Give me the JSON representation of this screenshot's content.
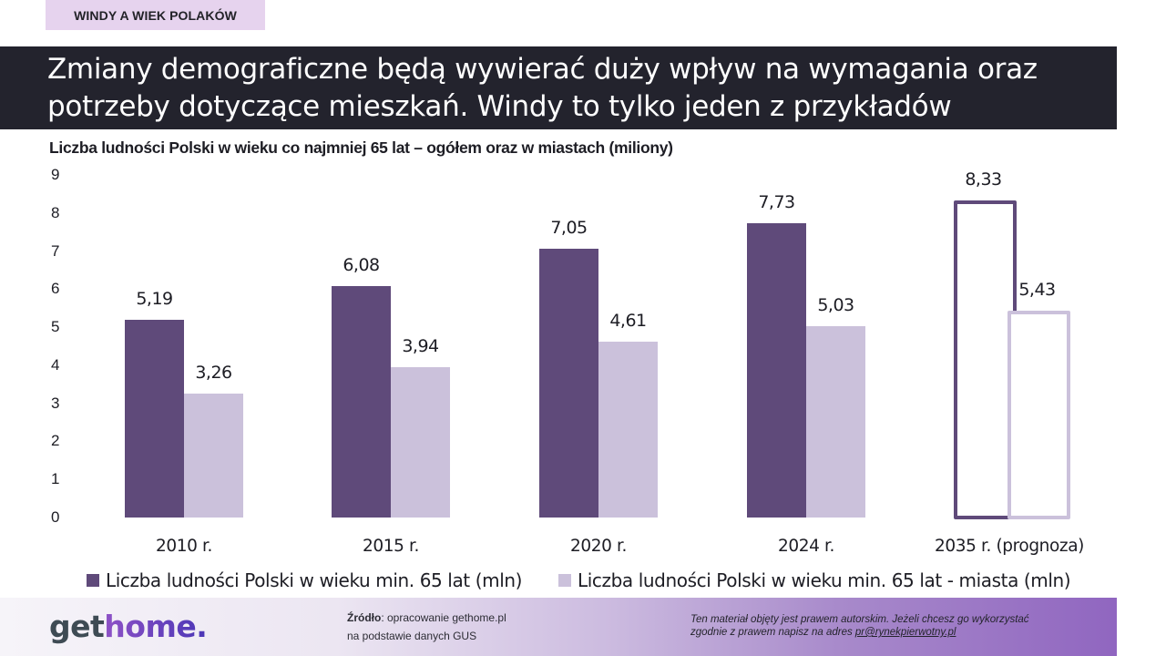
{
  "tag": {
    "label": "WINDY A WIEK POLAKÓW"
  },
  "banner": {
    "title_line1": "Zmiany demograficzne będą wywierać duży wpływ na wymagania oraz",
    "title_line2": "potrzeby dotyczące mieszkań. Windy to tylko jeden z przykładów"
  },
  "chart_data": {
    "type": "bar",
    "title": "Liczba ludności Polski w wieku co najmniej 65 lat – ogółem oraz w miastach (miliony)",
    "xlabel": "",
    "ylabel": "",
    "ylim": [
      0,
      9
    ],
    "yticks": [
      "0",
      "1",
      "2",
      "3",
      "4",
      "5",
      "6",
      "7",
      "8",
      "9"
    ],
    "grid": false,
    "legend_position": "bottom",
    "categories": [
      "2010 r.",
      "2015 r.",
      "2020 r.",
      "2024 r.",
      "2035 r. (prognoza)"
    ],
    "series": [
      {
        "name": "Liczba ludności Polski w wieku min. 65 lat (mln)",
        "color": "#5f4a7a",
        "values": [
          5.19,
          6.08,
          7.05,
          7.73,
          8.33
        ],
        "labels": [
          "5,19",
          "6,08",
          "7,05",
          "7,73",
          "8,33"
        ]
      },
      {
        "name": "Liczba ludności Polski w wieku min. 65 lat - miasta (mln)",
        "color": "#cbc1db",
        "values": [
          3.26,
          3.94,
          4.61,
          5.03,
          5.43
        ],
        "labels": [
          "3,26",
          "3,94",
          "4,61",
          "5,03",
          "5,43"
        ]
      }
    ],
    "annotations": [
      "2035 r. values are a forecast (outlined bars)"
    ]
  },
  "legend": {
    "items": [
      {
        "label": "Liczba ludności Polski w wieku min. 65 lat (mln)",
        "color": "#5f4a7a"
      },
      {
        "label": "Liczba ludności Polski w wieku min. 65 lat - miasta (mln)",
        "color": "#cbc1db"
      }
    ]
  },
  "footer": {
    "logo_part1": "get",
    "logo_part2": "home.",
    "source_label": "Źródło",
    "source_text": ": opracowanie gethome.pl",
    "source_line2": "na podstawie danych GUS",
    "copyright_line1": "Ten materiał objęty jest prawem autorskim. Jeżeli chcesz go wykorzystać",
    "copyright_line2_prefix": "zgodnie z prawem napisz na adres ",
    "copyright_email": "pr@rynekpierwotny.pl"
  }
}
